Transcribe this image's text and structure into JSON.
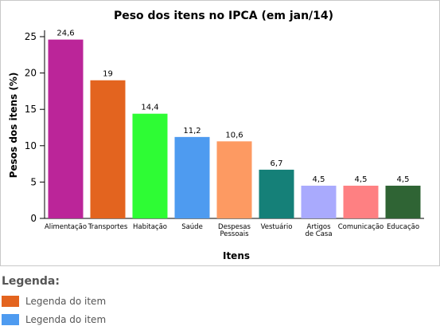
{
  "chart_data": {
    "type": "bar",
    "title": "Peso dos itens no IPCA (em jan/14)",
    "xlabel": "Itens",
    "ylabel": "Pesos dos itens (%)",
    "ylim": [
      0,
      25
    ],
    "yticks": [
      "0",
      "5",
      "10",
      "15",
      "20",
      "25"
    ],
    "categories": [
      [
        "Alimentação"
      ],
      [
        "Transportes"
      ],
      [
        "Habitação"
      ],
      [
        "Saúde"
      ],
      [
        "Despesas",
        "Pessoais"
      ],
      [
        "Vestuário"
      ],
      [
        "Artigos",
        "de Casa"
      ],
      [
        "Comunicação"
      ],
      [
        "Educação"
      ]
    ],
    "values": [
      24.6,
      19,
      14.4,
      11.2,
      10.6,
      6.7,
      4.5,
      4.5,
      4.5
    ],
    "value_labels": [
      "24,6",
      "19",
      "14,4",
      "11,2",
      "10,6",
      "6,7",
      "4,5",
      "4,5",
      "4,5"
    ],
    "colors": [
      "#bb2599",
      "#e3641f",
      "#2efc34",
      "#4e9bf0",
      "#fd9a62",
      "#158078",
      "#a9aafd",
      "#fe8082",
      "#2f6434"
    ],
    "grid": false
  },
  "legend": {
    "title": "Legenda:",
    "items": [
      {
        "label": "Legenda do item",
        "color": "#e3641f"
      },
      {
        "label": "Legenda do item",
        "color": "#4e9bf0"
      }
    ]
  }
}
